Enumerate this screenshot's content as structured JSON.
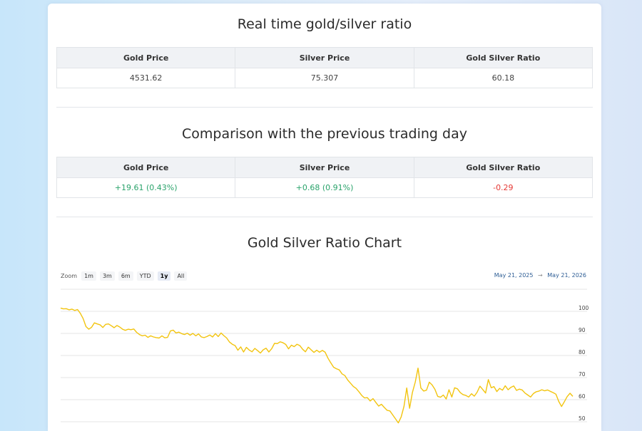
{
  "realtime": {
    "title": "Real time gold/silver ratio",
    "headers": [
      "Gold Price",
      "Silver Price",
      "Gold Silver Ratio"
    ],
    "values": [
      "4531.62",
      "75.307",
      "60.18"
    ]
  },
  "comparison": {
    "title": "Comparison with the previous trading day",
    "headers": [
      "Gold Price",
      "Silver Price",
      "Gold Silver Ratio"
    ],
    "values": [
      "+19.61 (0.43%)",
      "+0.68 (0.91%)",
      "-0.29"
    ]
  },
  "chart": {
    "title": "Gold Silver Ratio Chart",
    "zoom_label": "Zoom",
    "zoom_buttons": [
      "1m",
      "3m",
      "6m",
      "YTD",
      "1y",
      "All"
    ],
    "zoom_active": "1y",
    "range_from": "May 21, 2025",
    "range_arrow": "→",
    "range_to": "May 21, 2026",
    "colors": {
      "line": "#f2c40f",
      "grid": "#e6e6e6",
      "positive": "#2aa36b",
      "negative": "#e53935"
    }
  },
  "chart_data": {
    "type": "line",
    "title": "Gold Silver Ratio Chart",
    "ylim": [
      45,
      104
    ],
    "yticks": [
      50,
      60,
      70,
      80,
      90,
      100
    ],
    "grid": true,
    "series": [
      {
        "values": [
          100.2,
          99.8,
          99.9,
          99.4,
          99.7,
          99.1,
          99.5,
          97.8,
          95.4,
          91.8,
          90.6,
          91.5,
          93.5,
          93.0,
          92.6,
          91.4,
          92.8,
          93.0,
          92.2,
          91.3,
          92.3,
          91.6,
          90.6,
          90.1,
          90.6,
          90.4,
          90.7,
          89.2,
          88.2,
          87.6,
          87.9,
          86.9,
          87.6,
          87.1,
          86.8,
          86.6,
          87.6,
          86.7,
          86.9,
          89.8,
          90.2,
          88.9,
          89.3,
          88.6,
          88.2,
          88.8,
          87.9,
          88.7,
          87.6,
          88.5,
          87.1,
          86.8,
          87.3,
          88.0,
          87.1,
          88.6,
          87.3,
          88.9,
          87.7,
          86.6,
          84.8,
          83.8,
          83.2,
          81.1,
          82.6,
          80.3,
          82.4,
          81.2,
          80.4,
          81.9,
          80.9,
          79.8,
          81.3,
          82.0,
          80.3,
          81.8,
          84.2,
          84.1,
          84.9,
          84.5,
          83.7,
          81.7,
          83.4,
          82.7,
          83.8,
          83.2,
          81.5,
          80.4,
          82.5,
          81.3,
          80.1,
          81.1,
          80.2,
          81.0,
          80.2,
          77.5,
          75.4,
          73.4,
          72.7,
          72.2,
          70.4,
          69.6,
          67.6,
          66.2,
          64.7,
          63.8,
          62.3,
          60.6,
          59.5,
          59.6,
          58.1,
          59.2,
          57.5,
          55.8,
          56.6,
          55.2,
          53.9,
          53.6,
          51.8,
          50.0,
          48.2,
          50.9,
          55.6,
          64.0,
          54.8,
          61.9,
          66.6,
          73.0,
          64.0,
          62.6,
          63.0,
          66.6,
          65.4,
          63.4,
          60.2,
          59.8,
          60.8,
          59.0,
          63.2,
          59.9,
          64.1,
          63.6,
          61.9,
          61.0,
          60.6,
          59.9,
          61.4,
          60.3,
          62.1,
          64.8,
          63.3,
          61.7,
          67.8,
          64.1,
          64.6,
          62.4,
          63.8,
          63.0,
          65.0,
          63.2,
          64.3,
          64.9,
          62.9,
          63.5,
          63.1,
          61.7,
          60.8,
          59.9,
          61.5,
          62.3,
          62.6,
          63.2,
          62.7,
          63.1,
          62.5,
          61.9,
          61.2,
          57.9,
          55.6,
          57.8,
          60.1,
          61.6,
          60.2
        ]
      }
    ]
  }
}
